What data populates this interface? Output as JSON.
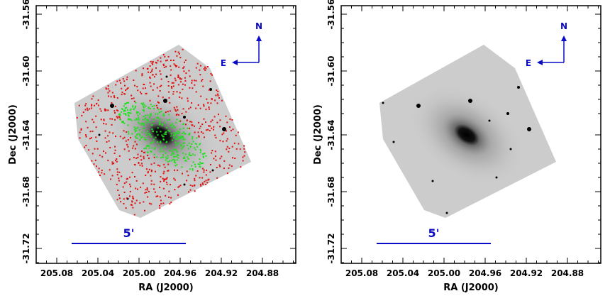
{
  "panels": [
    {
      "id": "left",
      "xlabel": "RA (J2000)",
      "ylabel": "Dec (J2000)",
      "x_ticks": [
        "205.08",
        "205.04",
        "205.00",
        "204.96",
        "204.92",
        "204.88"
      ],
      "y_ticks": [
        "-31.56",
        "-31.60",
        "-31.64",
        "-31.68",
        "-31.72"
      ],
      "compass": {
        "north": "N",
        "east": "E"
      },
      "scale_bar": "5'",
      "markers": true
    },
    {
      "id": "right",
      "xlabel": "RA (J2000)",
      "ylabel": "Dec (J2000)",
      "x_ticks": [
        "205.08",
        "205.04",
        "205.00",
        "204.96",
        "204.92",
        "204.88"
      ],
      "y_ticks": [
        "-31.56",
        "-31.60",
        "-31.64",
        "-31.68",
        "-31.72"
      ],
      "compass": {
        "north": "N",
        "east": "E"
      },
      "scale_bar": "5'",
      "markers": false
    }
  ],
  "colors": {
    "compass": "#0a0ac8",
    "red_markers": "#e01010",
    "green_markers": "#20e020"
  }
}
